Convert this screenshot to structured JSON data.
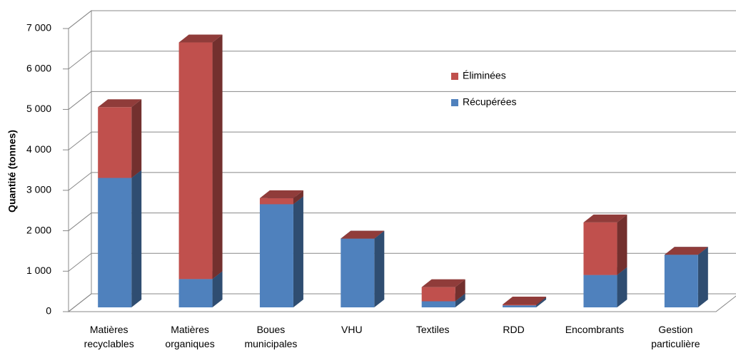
{
  "chart_data": {
    "type": "bar3d_stacked",
    "ylabel": "Quantité (tonnes)",
    "categories": [
      "Matières recyclables",
      "Matières organiques",
      "Boues municipales",
      "VHU",
      "Textiles",
      "RDD",
      "Encombrants",
      "Gestion particulière"
    ],
    "series": [
      {
        "name": "Récupérées",
        "color": "#4f81bd",
        "values": [
          3200,
          700,
          2550,
          1700,
          150,
          50,
          800,
          1300
        ]
      },
      {
        "name": "Éliminées",
        "color": "#c0504d",
        "values": [
          1750,
          5850,
          150,
          0,
          350,
          20,
          1300,
          0
        ]
      }
    ],
    "ylim": [
      0,
      7000
    ],
    "yticks": [
      0,
      {
        "value": 1000,
        "label": "1 000"
      },
      {
        "value": 2000,
        "label": "2 000"
      },
      {
        "value": 3000,
        "label": "3 000"
      },
      {
        "value": 4000,
        "label": "4 000"
      },
      {
        "value": 5000,
        "label": "5 000"
      },
      {
        "value": 6000,
        "label": "6 000"
      },
      {
        "value": 7000,
        "label": "7 000"
      }
    ],
    "grid": true,
    "legend": "upper-center-right"
  }
}
